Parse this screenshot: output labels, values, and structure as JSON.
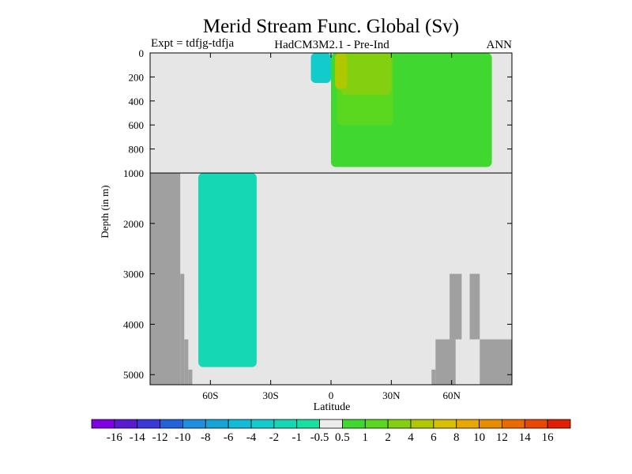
{
  "chart_data": {
    "type": "heatmap",
    "title": "Merid Stream Func. Global (Sv)",
    "subtitle_left": "Expt = tdfjg-tdfja",
    "subtitle_center": "HadCM3M2.1 - Pre-Ind",
    "subtitle_right": "ANN",
    "xlabel": "Latitude",
    "ylabel": "Depth (in m)",
    "xlim": [
      -90,
      90
    ],
    "x_ticks": [
      {
        "value": -60,
        "label": "60S"
      },
      {
        "value": -30,
        "label": "30S"
      },
      {
        "value": 0,
        "label": "0"
      },
      {
        "value": 30,
        "label": "30N"
      },
      {
        "value": 60,
        "label": "60N"
      }
    ],
    "y_ticks_upper": [
      {
        "value": 0,
        "label": "0"
      },
      {
        "value": 200,
        "label": "200"
      },
      {
        "value": 400,
        "label": "400"
      },
      {
        "value": 600,
        "label": "600"
      },
      {
        "value": 800,
        "label": "800"
      },
      {
        "value": 1000,
        "label": "1000"
      }
    ],
    "y_ticks_lower": [
      {
        "value": 2000,
        "label": "2000"
      },
      {
        "value": 3000,
        "label": "3000"
      },
      {
        "value": 4000,
        "label": "4000"
      },
      {
        "value": 5000,
        "label": "5000"
      }
    ],
    "upper_ylim": [
      0,
      1000
    ],
    "lower_ylim": [
      1000,
      5200
    ],
    "background_color": "#e6e6e6",
    "land_color": "#a0a0a0",
    "colorbar": {
      "labels": [
        "-16",
        "-14",
        "-12",
        "-10",
        "-8",
        "-6",
        "-4",
        "-2",
        "-1",
        "-0.5",
        "0.5",
        "1",
        "2",
        "4",
        "6",
        "8",
        "10",
        "12",
        "14",
        "16"
      ],
      "colors": [
        "#7f00e0",
        "#5a1ad0",
        "#3a3ad8",
        "#2462d8",
        "#1e8ee0",
        "#14a4d8",
        "#10bcd8",
        "#12cccc",
        "#14d8b4",
        "#18e0a0",
        "#ececec",
        "#40d830",
        "#5ad820",
        "#82d010",
        "#b0c800",
        "#d8c000",
        "#e8a800",
        "#e88c00",
        "#e86a00",
        "#e84800",
        "#e02000"
      ]
    },
    "shaded_regions": [
      {
        "range": "-2 to -1",
        "color": "#12cccc",
        "description": "southern deep cell",
        "lat_range": [
          -66,
          -52
        ],
        "depth_range": [
          1000,
          3700
        ]
      },
      {
        "range": "-1 to -0.5",
        "color": "#14d8b4",
        "lat_range": [
          -66,
          -37
        ],
        "depth_range": [
          1000,
          4850
        ]
      },
      {
        "range": "0.5 to 1",
        "color": "#40d830",
        "lat_range": [
          0,
          80
        ],
        "depth_range": [
          0,
          950
        ]
      },
      {
        "range": "1 to 2",
        "color": "#5ad820",
        "lat_range": [
          3,
          31
        ],
        "depth_range": [
          0,
          600
        ]
      },
      {
        "range": "2 to 4",
        "color": "#82d010",
        "lat_range": [
          5,
          30
        ],
        "depth_range": [
          0,
          350
        ]
      },
      {
        "range": "4 to 6",
        "color": "#b0c800",
        "lat_range": [
          2,
          8
        ],
        "depth_range": [
          0,
          300
        ]
      },
      {
        "range": "-2 to -1",
        "color": "#12cccc",
        "lat_range": [
          -10,
          0
        ],
        "depth_range": [
          0,
          250
        ]
      }
    ],
    "land_mask": [
      {
        "lat_range": [
          -90,
          -75
        ],
        "depth_range": [
          1000,
          5200
        ]
      },
      {
        "lat_range": [
          -75,
          -73
        ],
        "depth_range": [
          3000,
          5200
        ]
      },
      {
        "lat_range": [
          -73,
          -71
        ],
        "depth_range": [
          4300,
          5200
        ]
      },
      {
        "lat_range": [
          -71,
          -69
        ],
        "depth_range": [
          4900,
          5200
        ]
      },
      {
        "lat_range": [
          52,
          62
        ],
        "depth_range": [
          4300,
          5200
        ]
      },
      {
        "lat_range": [
          50,
          52
        ],
        "depth_range": [
          4900,
          5200
        ]
      },
      {
        "lat_range": [
          59,
          65
        ],
        "depth_range": [
          3000,
          4300
        ]
      },
      {
        "lat_range": [
          69,
          74
        ],
        "depth_range": [
          3000,
          4300
        ]
      },
      {
        "lat_range": [
          74,
          90
        ],
        "depth_range": [
          4300,
          5200
        ]
      }
    ]
  }
}
